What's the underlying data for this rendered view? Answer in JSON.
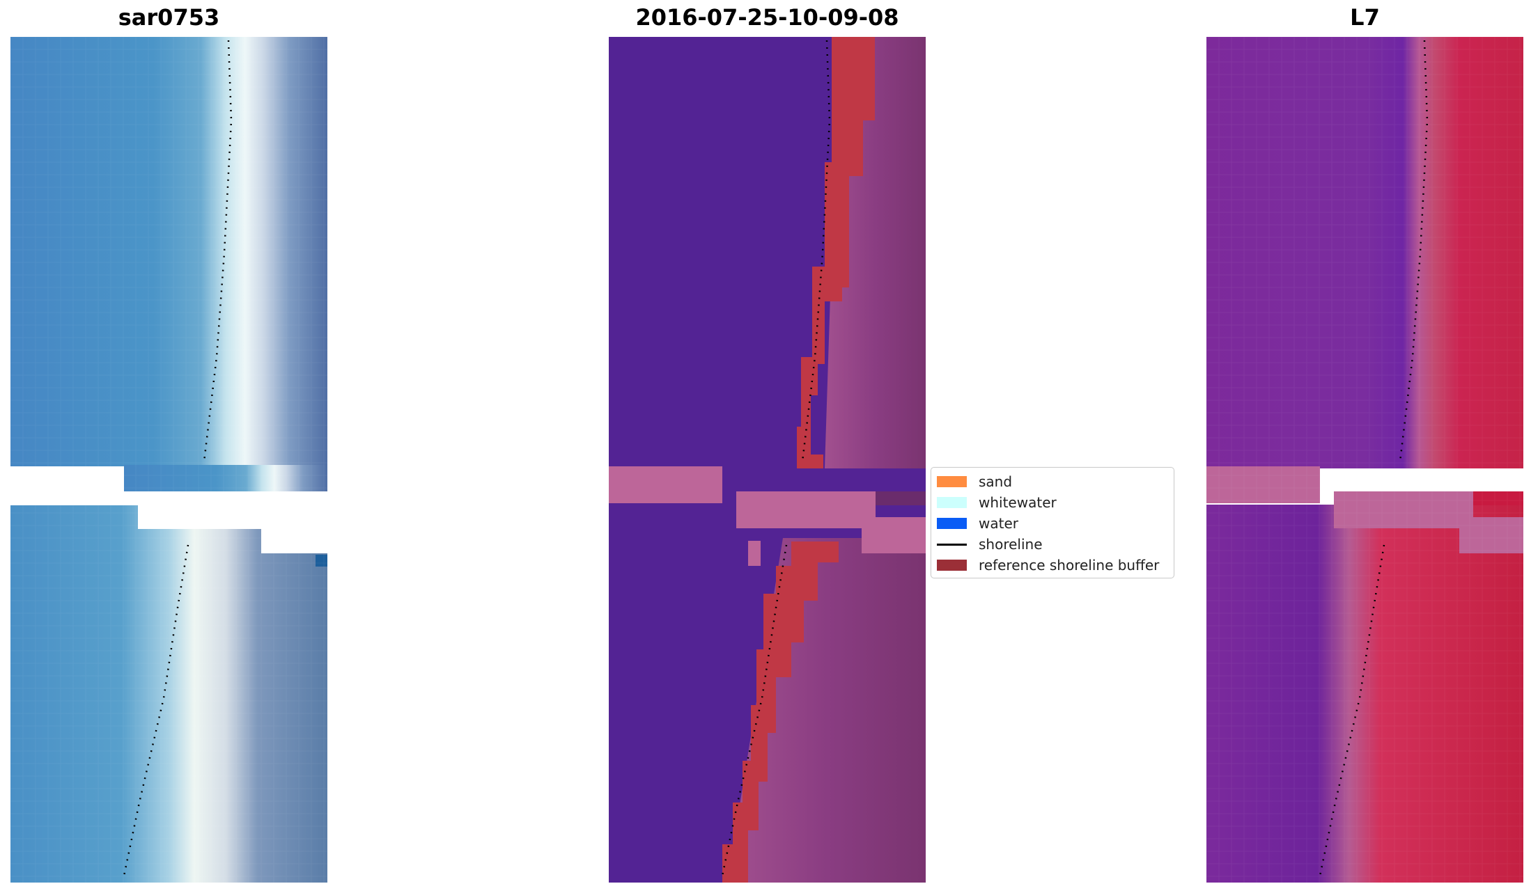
{
  "panels": [
    {
      "title": "sar0753"
    },
    {
      "title": "2016-07-25-10-09-08"
    },
    {
      "title": "L7"
    }
  ],
  "legend": {
    "items": [
      {
        "label": "sand",
        "color": "#ff8c40",
        "kind": "patch"
      },
      {
        "label": "whitewater",
        "color": "#ccfffd",
        "kind": "patch"
      },
      {
        "label": "water",
        "color": "#0a5cf5",
        "kind": "patch"
      },
      {
        "label": "shoreline",
        "color": "#000000",
        "kind": "line"
      },
      {
        "label": "reference shoreline buffer",
        "color": "#9b2f37",
        "kind": "patch"
      }
    ]
  },
  "colors": {
    "rgb_water": "#4b8fc6",
    "rgb_whitewater": "#e8f4f8",
    "rgb_land": "#5a7fae",
    "classified_water": "#522394",
    "buffer": "#c03845",
    "classified_land": "#7a3a80",
    "nodata_mask": "#bd6699",
    "l7_water": "#7a2a99",
    "l7_land": "#c52348"
  }
}
